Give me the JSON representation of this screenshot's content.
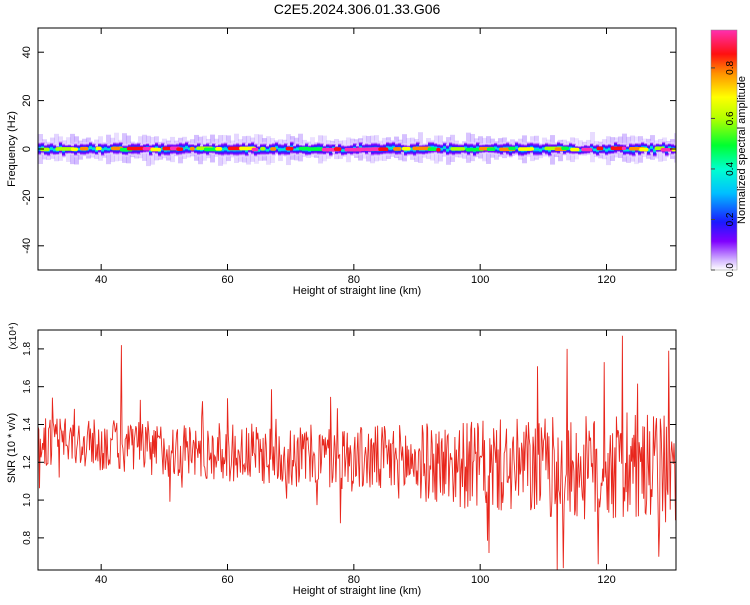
{
  "title": "C2E5.2024.306.01.33.G06",
  "chart_data": [
    {
      "type": "heatmap",
      "xlabel": "Height of straight line (km)",
      "ylabel": "Frequency (Hz)",
      "xlim": [
        30,
        131
      ],
      "ylim": [
        -50,
        50
      ],
      "x_ticks": [
        40,
        60,
        80,
        100,
        120
      ],
      "y_ticks": [
        -40,
        -20,
        0,
        20,
        40
      ],
      "grid": false,
      "colorbar": {
        "label": "Normalized spectral amplitude",
        "range": [
          0,
          0.95
        ],
        "ticks": [
          0.0,
          0.2,
          0.4,
          0.6,
          0.8
        ],
        "colormap": "rainbow (white-violet-blue-cyan-green-yellow-orange-red-magenta)"
      },
      "band": {
        "center_hz": 0,
        "core_halfwidth_hz": 1.5,
        "outer_halfwidth_hz": 4,
        "peak_amplitude": 0.9
      }
    },
    {
      "type": "line",
      "xlabel": "Height of straight line (km)",
      "ylabel": "SNR (10 * v/v)",
      "y_multiplier": "(x10⁴)",
      "xlim": [
        30,
        131
      ],
      "ylim": [
        0.63,
        1.9
      ],
      "x_ticks": [
        40,
        60,
        80,
        100,
        120
      ],
      "y_ticks": [
        0.8,
        1.0,
        1.2,
        1.4,
        1.6,
        1.8
      ],
      "y_tick_labels": [
        "0.8",
        "1.0",
        "1.2",
        "1.4",
        "1.6",
        "1.8"
      ],
      "grid": false,
      "series": [
        {
          "color": "#e8261c",
          "x_range": [
            30,
            131
          ],
          "sample_spacing_km": 0.12,
          "trend": [
            [
              30,
              1.31
            ],
            [
              60,
              1.25
            ],
            [
              80,
              1.22
            ],
            [
              100,
              1.18
            ],
            [
              131,
              1.15
            ]
          ],
          "noise_amplitude": [
            [
              30,
              0.08
            ],
            [
              80,
              0.11
            ],
            [
              110,
              0.17
            ],
            [
              131,
              0.19
            ]
          ],
          "notable_peaks": [
            [
              43.2,
              1.82
            ],
            [
              122.5,
              1.87
            ],
            [
              113.8,
              1.8
            ],
            [
              129.8,
              1.79
            ],
            [
              119.7,
              1.73
            ]
          ],
          "notable_troughs": [
            [
              113.2,
              0.64
            ],
            [
              118.7,
              0.66
            ],
            [
              128.3,
              0.7
            ],
            [
              101.4,
              0.72
            ]
          ]
        }
      ]
    }
  ]
}
